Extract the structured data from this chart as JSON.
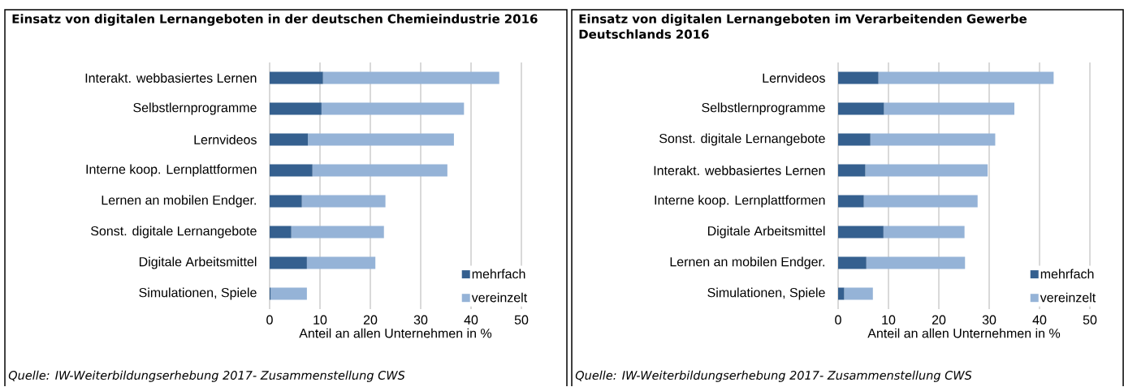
{
  "chart_data": [
    {
      "type": "bar",
      "orientation": "horizontal",
      "stacked": true,
      "title": "Einsatz von digitalen Lernangeboten in der deutschen Chemieindustrie 2016",
      "xlabel": "Anteil an allen Unternehmen in %",
      "categories": [
        "Interakt. webbasiertes Lernen",
        "Selbstlernprogramme",
        "Lernvideos",
        "Interne koop. Lernplattformen",
        "Lernen an mobilen Endger.",
        "Sonst. digitale Lernangebote",
        "Digitale Arbeitsmittel",
        "Simulationen, Spiele"
      ],
      "series": [
        {
          "name": "mehrfach",
          "color": "#35608f",
          "values": [
            10.6,
            10.3,
            7.6,
            8.5,
            6.4,
            4.3,
            7.4,
            0.2
          ]
        },
        {
          "name": "vereinzelt",
          "color": "#95b3d7",
          "values": [
            35.0,
            28.3,
            29.0,
            26.8,
            16.6,
            18.4,
            13.6,
            7.2
          ]
        }
      ],
      "xlim": [
        0,
        50
      ],
      "xticks": [
        0,
        10,
        20,
        30,
        40,
        50
      ],
      "grid": "x",
      "legend": "bottom right",
      "annotations": [
        "Quelle:  IW-Weiterbildungserhebung 2017- Zusammenstellung CWS"
      ]
    },
    {
      "type": "bar",
      "orientation": "horizontal",
      "stacked": true,
      "title": "Einsatz von digitalen Lernangeboten im Verarbeitenden Gewerbe Deutschlands 2016",
      "xlabel": "Anteil an allen Unternehmen in %",
      "categories": [
        "Lernvideos",
        "Selbstlernprogramme",
        "Sonst. digitale Lernangebote",
        "Interakt. webbasiertes Lernen",
        "Interne koop. Lernplattformen",
        "Digitale Arbeitsmittel",
        "Lernen an mobilen Endger.",
        "Simulationen, Spiele"
      ],
      "series": [
        {
          "name": "mehrfach",
          "color": "#35608f",
          "values": [
            8.0,
            9.1,
            6.4,
            5.4,
            5.1,
            9.0,
            5.6,
            1.2
          ]
        },
        {
          "name": "vereinzelt",
          "color": "#95b3d7",
          "values": [
            34.8,
            25.9,
            24.8,
            24.3,
            22.6,
            16.1,
            19.6,
            5.7
          ]
        }
      ],
      "xlim": [
        0,
        50
      ],
      "xticks": [
        0,
        10,
        20,
        30,
        40,
        50
      ],
      "grid": "x",
      "legend": "bottom right",
      "annotations": [
        "Quelle:  IW-Weiterbildungserhebung 2017- Zusammenstellung CWS"
      ]
    }
  ]
}
